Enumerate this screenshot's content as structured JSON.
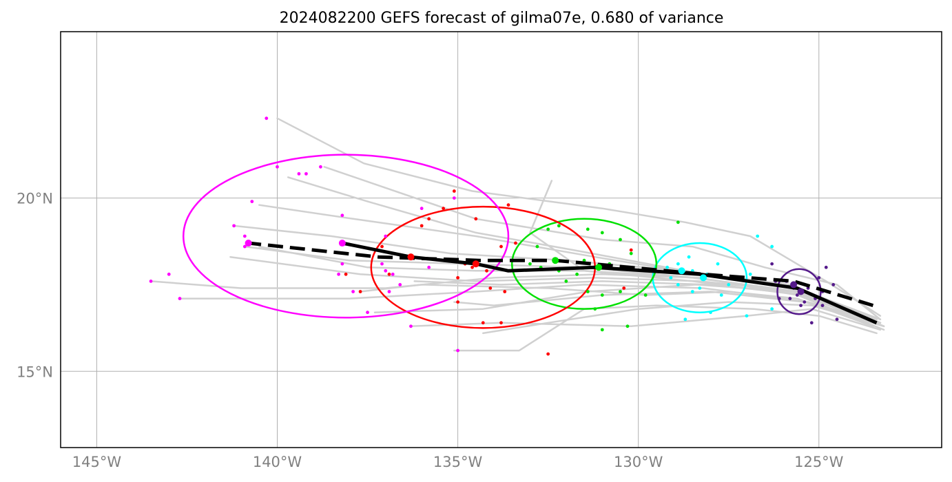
{
  "chart_data": {
    "type": "line",
    "title": "2024082200 GEFS forecast of gilma07e, 0.680 of variance",
    "x_axis": {
      "lim": [
        -146,
        -121.6
      ],
      "ticks": [
        -145,
        -140,
        -135,
        -130,
        -125
      ],
      "tick_labels": [
        "145°W",
        "140°W",
        "135°W",
        "130°W",
        "125°W"
      ]
    },
    "y_axis": {
      "lim": [
        12.8,
        24.8
      ],
      "ticks": [
        15,
        20
      ],
      "tick_labels": [
        "15°N",
        "20°N"
      ]
    },
    "grid": true,
    "colors": {
      "members": "#d0d0d0",
      "ensemble_mean": "#000000",
      "reference_track": "#000000",
      "purple": "#551a8b",
      "cyan": "#00ffff",
      "green": "#00e000",
      "red": "#ff0000",
      "magenta": "#ff00ff"
    },
    "ensemble_mean_track": [
      [
        -123.4,
        16.4
      ],
      [
        -125.6,
        17.4
      ],
      [
        -128.3,
        17.8
      ],
      [
        -131.2,
        18.0
      ],
      [
        -133.6,
        17.9
      ],
      [
        -134.5,
        18.1
      ],
      [
        -136.3,
        18.3
      ],
      [
        -138.2,
        18.7
      ]
    ],
    "reference_track": [
      [
        -123.5,
        16.9
      ],
      [
        -125.7,
        17.6
      ],
      [
        -128.2,
        17.8
      ],
      [
        -132.3,
        18.2
      ],
      [
        -134.4,
        18.2
      ],
      [
        -137.2,
        18.3
      ],
      [
        -140.8,
        18.7
      ]
    ],
    "member_tracks": [
      [
        [
          -123.2,
          16.3
        ],
        [
          -125.5,
          17.2
        ],
        [
          -128.5,
          17.6
        ],
        [
          -131.5,
          17.9
        ],
        [
          -134.5,
          17.9
        ],
        [
          -137.5,
          18.0
        ],
        [
          -140.5,
          18.6
        ]
      ],
      [
        [
          -123.3,
          16.4
        ],
        [
          -125.8,
          17.5
        ],
        [
          -128.8,
          17.9
        ],
        [
          -132.0,
          18.2
        ],
        [
          -135.2,
          18.4
        ],
        [
          -138.5,
          18.9
        ],
        [
          -141.2,
          19.2
        ]
      ],
      [
        [
          -123.2,
          16.2
        ],
        [
          -125.6,
          17.2
        ],
        [
          -128.3,
          17.7
        ],
        [
          -131.0,
          17.8
        ],
        [
          -134.0,
          17.7
        ],
        [
          -137.0,
          17.4
        ],
        [
          -141.0,
          17.4
        ],
        [
          -143.5,
          17.6
        ]
      ],
      [
        [
          -123.3,
          16.4
        ],
        [
          -125.3,
          17.0
        ],
        [
          -128.2,
          17.4
        ],
        [
          -131.5,
          17.5
        ],
        [
          -134.5,
          17.3
        ],
        [
          -138.0,
          17.1
        ],
        [
          -142.7,
          17.1
        ]
      ],
      [
        [
          -123.2,
          16.3
        ],
        [
          -125.4,
          17.0
        ],
        [
          -128.0,
          17.3
        ],
        [
          -131.0,
          17.2
        ],
        [
          -134.0,
          16.9
        ],
        [
          -135.1,
          17.0
        ]
      ],
      [
        [
          -123.3,
          16.2
        ],
        [
          -125.2,
          16.8
        ],
        [
          -127.0,
          16.6
        ],
        [
          -130.2,
          16.3
        ],
        [
          -133.8,
          16.4
        ],
        [
          -136.3,
          16.3
        ]
      ],
      [
        [
          -123.4,
          16.1
        ],
        [
          -125.0,
          16.6
        ],
        [
          -126.8,
          16.8
        ],
        [
          -129.5,
          16.9
        ],
        [
          -131.5,
          16.8
        ],
        [
          -133.3,
          15.6
        ],
        [
          -135.1,
          15.6
        ]
      ],
      [
        [
          -123.3,
          16.5
        ],
        [
          -124.5,
          17.5
        ],
        [
          -126.5,
          18.0
        ],
        [
          -128.5,
          18.6
        ],
        [
          -131.0,
          18.8
        ],
        [
          -134.5,
          19.4
        ],
        [
          -138.7,
          20.9
        ]
      ],
      [
        [
          -123.3,
          16.6
        ],
        [
          -124.8,
          17.6
        ],
        [
          -126.9,
          18.9
        ],
        [
          -128.7,
          19.3
        ],
        [
          -131.0,
          19.7
        ],
        [
          -134.6,
          20.2
        ],
        [
          -137.6,
          21.0
        ],
        [
          -140.0,
          22.3
        ]
      ],
      [
        [
          -123.5,
          16.3
        ],
        [
          -125.6,
          17.1
        ],
        [
          -127.5,
          17.3
        ],
        [
          -129.8,
          17.2
        ],
        [
          -132.5,
          17.4
        ],
        [
          -136.0,
          17.5
        ],
        [
          -137.7,
          17.3
        ]
      ],
      [
        [
          -123.2,
          16.3
        ],
        [
          -125.5,
          17.3
        ],
        [
          -128.3,
          17.6
        ],
        [
          -131.2,
          17.7
        ],
        [
          -134.5,
          17.6
        ],
        [
          -137.7,
          17.8
        ],
        [
          -141.3,
          18.3
        ]
      ],
      [
        [
          -123.3,
          16.4
        ],
        [
          -125.7,
          17.3
        ],
        [
          -128.4,
          17.5
        ],
        [
          -131.4,
          17.3
        ],
        [
          -134.3,
          16.8
        ],
        [
          -137.3,
          16.7
        ]
      ],
      [
        [
          -123.3,
          16.5
        ],
        [
          -125.6,
          17.4
        ],
        [
          -128.3,
          17.8
        ],
        [
          -131.2,
          18.3
        ],
        [
          -134.5,
          18.9
        ],
        [
          -137.9,
          19.4
        ],
        [
          -140.5,
          19.8
        ]
      ],
      [
        [
          -123.4,
          16.4
        ],
        [
          -125.8,
          17.4
        ],
        [
          -128.7,
          17.9
        ],
        [
          -131.8,
          18.5
        ],
        [
          -134.5,
          19.0
        ],
        [
          -137.5,
          19.9
        ],
        [
          -139.7,
          20.6
        ]
      ],
      [
        [
          -123.3,
          16.4
        ],
        [
          -125.3,
          17.2
        ],
        [
          -128.0,
          17.5
        ],
        [
          -131.0,
          17.6
        ],
        [
          -133.8,
          17.5
        ],
        [
          -136.2,
          17.6
        ]
      ],
      [
        [
          -123.4,
          16.5
        ],
        [
          -125.5,
          17.3
        ],
        [
          -128.5,
          17.7
        ],
        [
          -131.5,
          17.9
        ],
        [
          -133.0,
          19.0
        ],
        [
          -132.4,
          20.5
        ]
      ],
      [
        [
          -123.2,
          16.3
        ],
        [
          -125.2,
          16.9
        ],
        [
          -127.5,
          17.0
        ],
        [
          -130.0,
          16.8
        ],
        [
          -132.5,
          16.4
        ],
        [
          -134.3,
          16.1
        ]
      ],
      [
        [
          -123.3,
          16.4
        ],
        [
          -125.6,
          17.3
        ],
        [
          -128.4,
          17.7
        ],
        [
          -131.6,
          18.0
        ],
        [
          -134.8,
          18.1
        ],
        [
          -138.0,
          18.2
        ],
        [
          -140.9,
          18.6
        ]
      ]
    ],
    "forecast_groups": [
      {
        "color": "purple",
        "center": [
          -125.5,
          17.3
        ],
        "center_mean": [
          -125.7,
          17.5
        ],
        "ellipse": {
          "center": [
            -125.55,
            17.3
          ],
          "rx": 0.6,
          "ry": 0.65
        },
        "points": [
          [
            -125.9,
            17.6
          ],
          [
            -125.6,
            17.2
          ],
          [
            -125.3,
            17.4
          ],
          [
            -125.1,
            17.1
          ],
          [
            -124.9,
            17.3
          ],
          [
            -125.5,
            16.9
          ],
          [
            -125.8,
            17.1
          ],
          [
            -124.8,
            18.0
          ],
          [
            -124.6,
            17.5
          ],
          [
            -125.2,
            16.4
          ],
          [
            -124.5,
            16.5
          ],
          [
            -126.2,
            17.6
          ],
          [
            -126.1,
            17.1
          ],
          [
            -125.4,
            17.0
          ],
          [
            -125.0,
            17.7
          ],
          [
            -125.7,
            17.4
          ],
          [
            -126.3,
            18.1
          ],
          [
            -124.9,
            16.9
          ]
        ]
      },
      {
        "color": "cyan",
        "center": [
          -128.2,
          17.7
        ],
        "center_mean": [
          -128.8,
          17.9
        ],
        "ellipse": {
          "center": [
            -128.3,
            17.7
          ],
          "rx": 1.3,
          "ry": 1.0
        },
        "points": [
          [
            -128.9,
            18.1
          ],
          [
            -128.5,
            17.9
          ],
          [
            -128.1,
            17.8
          ],
          [
            -127.8,
            18.1
          ],
          [
            -128.6,
            18.3
          ],
          [
            -129.2,
            18.0
          ],
          [
            -127.7,
            17.2
          ],
          [
            -128.5,
            17.3
          ],
          [
            -128.0,
            16.7
          ],
          [
            -127.0,
            16.6
          ],
          [
            -126.7,
            18.9
          ],
          [
            -126.3,
            18.6
          ],
          [
            -128.9,
            17.5
          ],
          [
            -129.1,
            17.7
          ],
          [
            -127.5,
            17.5
          ],
          [
            -126.9,
            17.8
          ],
          [
            -128.3,
            17.4
          ],
          [
            -128.7,
            16.5
          ],
          [
            -126.3,
            16.8
          ]
        ]
      },
      {
        "color": "green",
        "center": [
          -131.1,
          18.0
        ],
        "center_mean": [
          -132.3,
          18.2
        ],
        "ellipse": {
          "center": [
            -131.5,
            18.1
          ],
          "rx": 2.0,
          "ry": 1.3
        },
        "points": [
          [
            -130.5,
            18.8
          ],
          [
            -131.0,
            19.0
          ],
          [
            -131.4,
            19.1
          ],
          [
            -132.2,
            19.2
          ],
          [
            -132.5,
            19.1
          ],
          [
            -133.0,
            18.1
          ],
          [
            -132.7,
            18.0
          ],
          [
            -132.2,
            17.9
          ],
          [
            -131.7,
            17.8
          ],
          [
            -130.8,
            18.1
          ],
          [
            -130.2,
            18.4
          ],
          [
            -130.5,
            17.3
          ],
          [
            -131.0,
            17.2
          ],
          [
            -131.4,
            17.3
          ],
          [
            -131.2,
            16.8
          ],
          [
            -131.0,
            16.2
          ],
          [
            -130.3,
            16.3
          ],
          [
            -129.8,
            17.2
          ],
          [
            -128.9,
            19.3
          ],
          [
            -132.8,
            18.6
          ],
          [
            -131.5,
            18.2
          ],
          [
            -132.0,
            17.6
          ]
        ]
      },
      {
        "color": "red",
        "center": [
          -134.5,
          18.1
        ],
        "center_mean": [
          -136.3,
          18.3
        ],
        "ellipse": {
          "center": [
            -134.3,
            18.0
          ],
          "rx": 3.1,
          "ry": 1.75
        },
        "points": [
          [
            -135.1,
            20.2
          ],
          [
            -134.5,
            19.4
          ],
          [
            -133.6,
            19.8
          ],
          [
            -135.4,
            19.7
          ],
          [
            -135.8,
            19.4
          ],
          [
            -136.0,
            19.2
          ],
          [
            -133.8,
            18.6
          ],
          [
            -133.4,
            18.7
          ],
          [
            -137.1,
            18.6
          ],
          [
            -134.8,
            18.1
          ],
          [
            -134.6,
            18.0
          ],
          [
            -135.0,
            17.7
          ],
          [
            -134.2,
            17.9
          ],
          [
            -133.7,
            17.3
          ],
          [
            -134.1,
            17.4
          ],
          [
            -135.0,
            17.0
          ],
          [
            -136.9,
            17.8
          ],
          [
            -138.1,
            17.8
          ],
          [
            -137.7,
            17.3
          ],
          [
            -133.8,
            16.4
          ],
          [
            -134.3,
            16.4
          ],
          [
            -132.5,
            15.5
          ],
          [
            -130.4,
            17.4
          ],
          [
            -130.2,
            18.5
          ]
        ]
      },
      {
        "color": "magenta",
        "center": [
          -138.2,
          18.7
        ],
        "center_mean": [
          -140.8,
          18.7
        ],
        "ellipse": {
          "center": [
            -138.1,
            18.9
          ],
          "rx": 4.5,
          "ry": 2.35
        },
        "points": [
          [
            -140.3,
            22.3
          ],
          [
            -138.8,
            20.9
          ],
          [
            -140.0,
            20.9
          ],
          [
            -139.2,
            20.7
          ],
          [
            -139.4,
            20.7
          ],
          [
            -140.7,
            19.9
          ],
          [
            -138.2,
            19.5
          ],
          [
            -141.2,
            19.2
          ],
          [
            -140.9,
            18.9
          ],
          [
            -140.9,
            18.6
          ],
          [
            -138.2,
            18.1
          ],
          [
            -137.1,
            18.1
          ],
          [
            -136.8,
            17.8
          ],
          [
            -137.0,
            17.9
          ],
          [
            -136.9,
            17.3
          ],
          [
            -137.9,
            17.3
          ],
          [
            -143.0,
            17.8
          ],
          [
            -143.5,
            17.6
          ],
          [
            -142.7,
            17.1
          ],
          [
            -137.5,
            16.7
          ],
          [
            -136.3,
            16.3
          ],
          [
            -135.0,
            15.6
          ],
          [
            -136.0,
            19.7
          ],
          [
            -137.0,
            18.9
          ],
          [
            -135.8,
            18.0
          ],
          [
            -136.6,
            17.5
          ],
          [
            -138.3,
            17.8
          ],
          [
            -135.1,
            20.0
          ]
        ]
      }
    ]
  }
}
